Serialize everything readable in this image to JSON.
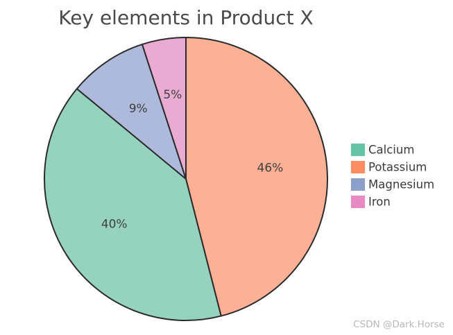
{
  "chart_data": {
    "type": "pie",
    "title": "Key elements in Product X",
    "categories": [
      "Calcium",
      "Potassium",
      "Magnesium",
      "Iron"
    ],
    "values": [
      40,
      46,
      9,
      5
    ],
    "labels": [
      "40%",
      "46%",
      "9%",
      "5%"
    ],
    "colors": [
      "#95d3bf",
      "#fcb095",
      "#aebadb",
      "#eaabd2"
    ],
    "legend_colors": [
      "#66c2a5",
      "#fc8d62",
      "#8da0cb",
      "#e78ac3"
    ],
    "legend_position": "right",
    "start_angle": "top",
    "direction": "clockwise",
    "slice_order": [
      "Potassium",
      "Calcium",
      "Magnesium",
      "Iron"
    ]
  },
  "watermark": "CSDN @Dark.Horse"
}
